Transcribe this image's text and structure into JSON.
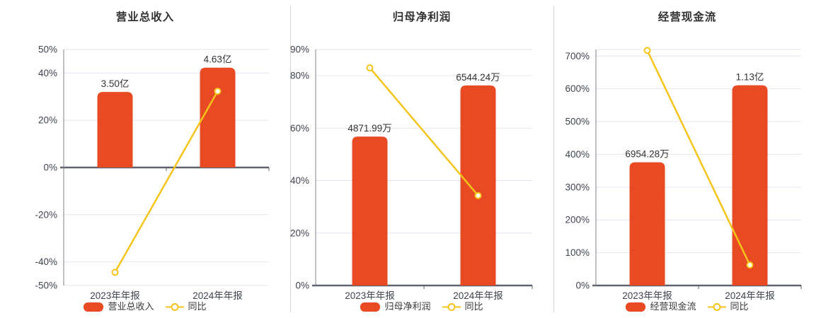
{
  "colors": {
    "bar": "#e84b23",
    "line": "#f5c41a",
    "marker_fill": "#ffffff",
    "grid": "#e3e4f1",
    "zero_line": "#5f636d",
    "axis_line": "#7c818b",
    "tick_text": "#3f4450",
    "label_text": "#333333",
    "divider": "#d4d4d4",
    "background": "#ffffff"
  },
  "chart_data": [
    {
      "type": "bar+line",
      "title": "营业总收入",
      "categories": [
        "2023年年报",
        "2024年年报"
      ],
      "bars": {
        "name": "营业总收入",
        "value_labels": [
          "3.50亿",
          "4.63亿"
        ],
        "values": [
          3.5,
          4.63
        ],
        "unit": "亿",
        "display_heights_axis_units": [
          32.0,
          42.3
        ]
      },
      "yoy": {
        "name": "同比",
        "values_pct": [
          -44.4,
          32.3
        ]
      },
      "y_axis": {
        "min": -50,
        "max": 50,
        "tick_values": [
          50,
          40,
          20,
          0,
          -20,
          -40,
          -50
        ],
        "tick_labels": [
          "50%",
          "40%",
          "20%",
          "0%",
          "-20%",
          "-40%",
          "-50%"
        ]
      },
      "grid": true,
      "legend_position": "bottom",
      "legend": [
        "营业总收入",
        "同比"
      ]
    },
    {
      "type": "bar+line",
      "title": "归母净利润",
      "categories": [
        "2023年年报",
        "2024年年报"
      ],
      "bars": {
        "name": "归母净利润",
        "value_labels": [
          "4871.99万",
          "6544.24万"
        ],
        "values": [
          4871.99,
          6544.24
        ],
        "unit": "万",
        "display_heights_axis_units": [
          56.8,
          76.3
        ]
      },
      "yoy": {
        "name": "同比",
        "values_pct": [
          83.0,
          34.3
        ]
      },
      "y_axis": {
        "min": 0,
        "max": 90,
        "tick_values": [
          90,
          80,
          60,
          40,
          20,
          0
        ],
        "tick_labels": [
          "90%",
          "80%",
          "60%",
          "40%",
          "20%",
          "0%"
        ]
      },
      "grid": true,
      "legend_position": "bottom",
      "legend": [
        "归母净利润",
        "同比"
      ]
    },
    {
      "type": "bar+line",
      "title": "经营现金流",
      "categories": [
        "2023年年报",
        "2024年年报"
      ],
      "bars": {
        "name": "经营现金流",
        "value_labels": [
          "6954.28万",
          "1.13亿"
        ],
        "values": [
          6954.28,
          11300
        ],
        "unit": "万",
        "display_heights_axis_units": [
          376,
          611
        ]
      },
      "yoy": {
        "name": "同比",
        "values_pct": [
          717,
          62.5
        ]
      },
      "y_axis": {
        "min": 0,
        "max": 720,
        "tick_values": [
          700,
          600,
          500,
          400,
          300,
          200,
          100,
          0
        ],
        "tick_labels": [
          "700%",
          "600%",
          "500%",
          "400%",
          "300%",
          "200%",
          "100%",
          "0%"
        ]
      },
      "grid": true,
      "legend_position": "bottom",
      "legend": [
        "经营现金流",
        "同比"
      ]
    }
  ]
}
